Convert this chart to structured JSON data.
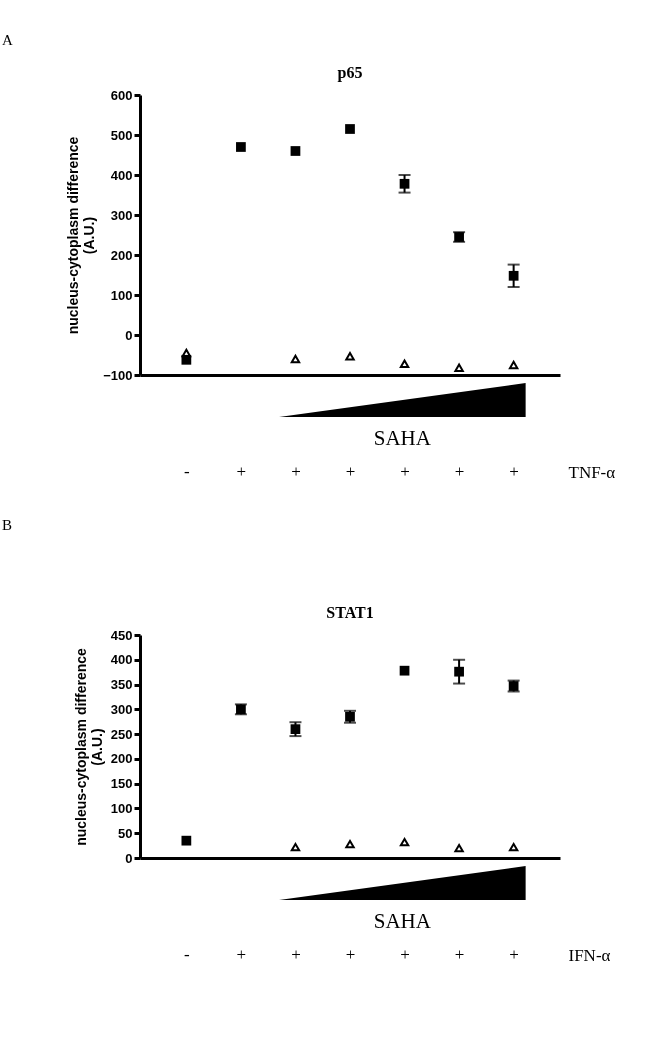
{
  "chart_data": [
    {
      "type": "scatter",
      "title": "p65",
      "ylabel": "nucleus-cytoplasm difference\n(A.U.)",
      "xlabel": "TNF-α",
      "categories": [
        "-",
        "+",
        "+",
        "+",
        "+",
        "+",
        "+"
      ],
      "series": [
        {
          "color": "#000000",
          "marker": "square",
          "values": [
            -62,
            470,
            460,
            515,
            378,
            245,
            148
          ],
          "errors": [
            null,
            null,
            null,
            null,
            22,
            12,
            28
          ]
        },
        {
          "color": "#000000",
          "marker": "triangle",
          "values": [
            -45,
            null,
            -60,
            -53,
            -72,
            -82,
            -75
          ]
        }
      ],
      "ylim": [
        -100,
        600
      ],
      "yticks": [
        -100,
        0,
        100,
        200,
        300,
        400,
        500,
        600
      ],
      "annotations": [
        "A",
        "SAHA"
      ]
    },
    {
      "type": "scatter",
      "title": "STAT1",
      "ylabel": "nucleus-cytoplasm difference\n(A.U.)",
      "xlabel": "IFN-α",
      "categories": [
        "-",
        "+",
        "+",
        "+",
        "+",
        "+",
        "+"
      ],
      "series": [
        {
          "color": "#000000",
          "marker": "square",
          "values": [
            35,
            300,
            260,
            285,
            378,
            376,
            347
          ],
          "errors": [
            null,
            10,
            14,
            12,
            null,
            24,
            11
          ]
        },
        {
          "color": "#000000",
          "marker": "triangle",
          "values": [
            null,
            null,
            22,
            28,
            32,
            20,
            22
          ]
        }
      ],
      "ylim": [
        0,
        450
      ],
      "yticks": [
        0,
        50,
        100,
        150,
        200,
        250,
        300,
        350,
        400,
        450
      ],
      "annotations": [
        "B",
        "SAHA"
      ]
    }
  ]
}
